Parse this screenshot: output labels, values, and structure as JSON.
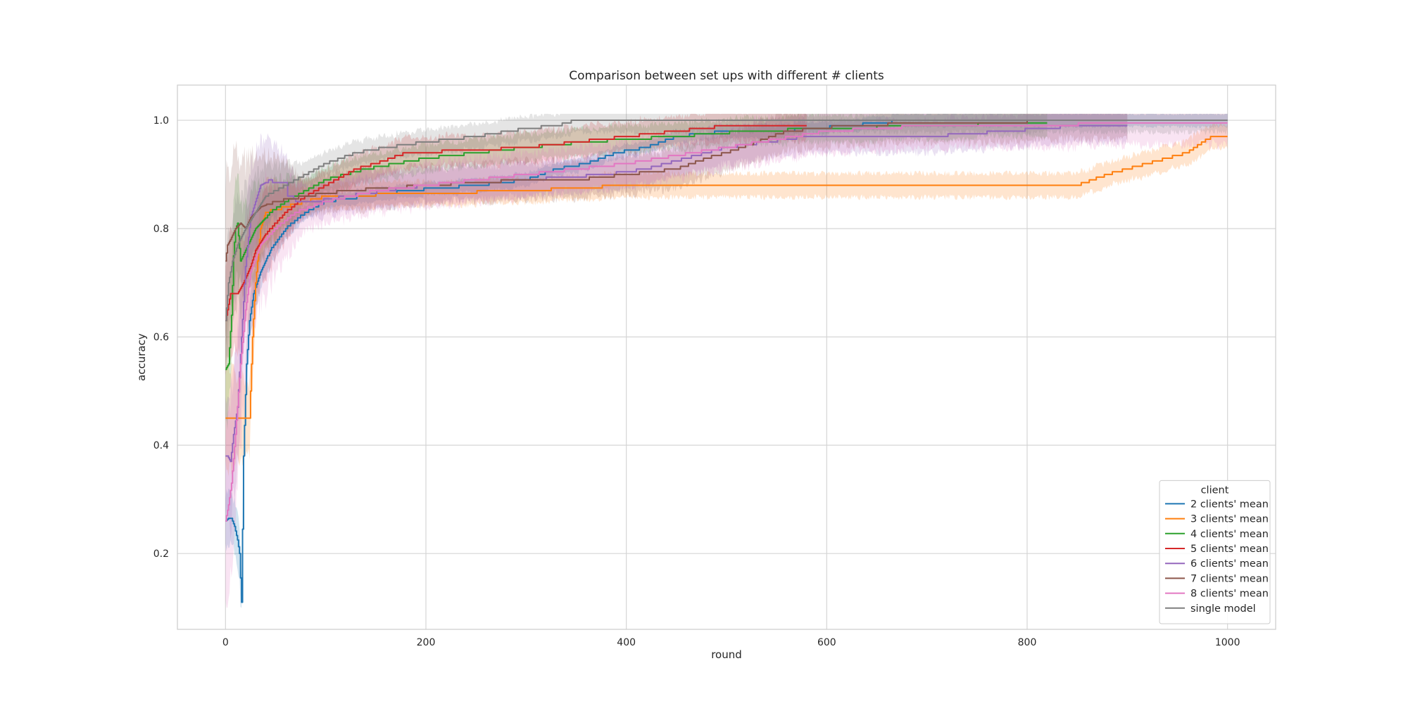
{
  "chart_data": {
    "type": "line",
    "title": "Comparison between set ups with different # clients",
    "xlabel": "round",
    "ylabel": "accuracy",
    "xlim": [
      -48,
      1048
    ],
    "ylim": [
      0.06,
      1.065
    ],
    "xticks": [
      0,
      200,
      400,
      600,
      800,
      1000
    ],
    "yticks": [
      0.2,
      0.4,
      0.6,
      0.8,
      1.0
    ],
    "xtick_labels": [
      "0",
      "200",
      "400",
      "600",
      "800",
      "1000"
    ],
    "ytick_labels": [
      "0.2",
      "0.4",
      "0.6",
      "0.8",
      "1.0"
    ],
    "grid": true,
    "legend": {
      "title": "client",
      "placement": "lower-right"
    },
    "series": [
      {
        "name": "2 clients' mean",
        "color": "#1f77b4",
        "x_end": 1000,
        "points": [
          [
            0,
            0.26
          ],
          [
            3,
            0.265
          ],
          [
            6,
            0.265
          ],
          [
            9,
            0.25
          ],
          [
            12,
            0.225
          ],
          [
            14,
            0.2
          ],
          [
            16,
            0.11
          ],
          [
            18,
            0.38
          ],
          [
            21,
            0.55
          ],
          [
            24,
            0.63
          ],
          [
            28,
            0.68
          ],
          [
            35,
            0.72
          ],
          [
            45,
            0.76
          ],
          [
            60,
            0.8
          ],
          [
            80,
            0.83
          ],
          [
            100,
            0.85
          ],
          [
            140,
            0.86
          ],
          [
            180,
            0.87
          ],
          [
            250,
            0.88
          ],
          [
            300,
            0.89
          ],
          [
            330,
            0.91
          ],
          [
            360,
            0.92
          ],
          [
            390,
            0.94
          ],
          [
            420,
            0.95
          ],
          [
            450,
            0.97
          ],
          [
            500,
            0.98
          ],
          [
            550,
            0.98
          ],
          [
            620,
            0.99
          ],
          [
            680,
            1.0
          ],
          [
            1000,
            1.0
          ]
        ],
        "band": 0.012
      },
      {
        "name": "3 clients' mean",
        "color": "#ff7f0e",
        "x_end": 1000,
        "points": [
          [
            0,
            0.45
          ],
          [
            10,
            0.45
          ],
          [
            24,
            0.45
          ],
          [
            27,
            0.6
          ],
          [
            30,
            0.7
          ],
          [
            35,
            0.8
          ],
          [
            40,
            0.83
          ],
          [
            60,
            0.84
          ],
          [
            100,
            0.86
          ],
          [
            200,
            0.865
          ],
          [
            300,
            0.87
          ],
          [
            400,
            0.88
          ],
          [
            600,
            0.88
          ],
          [
            850,
            0.88
          ],
          [
            880,
            0.9
          ],
          [
            920,
            0.92
          ],
          [
            960,
            0.94
          ],
          [
            975,
            0.96
          ],
          [
            985,
            0.97
          ],
          [
            1000,
            0.97
          ]
        ],
        "band": 0.022
      },
      {
        "name": "4 clients' mean",
        "color": "#2ca02c",
        "x_end": 820,
        "points": [
          [
            0,
            0.54
          ],
          [
            3,
            0.55
          ],
          [
            6,
            0.64
          ],
          [
            8,
            0.75
          ],
          [
            10,
            0.8
          ],
          [
            12,
            0.81
          ],
          [
            15,
            0.74
          ],
          [
            20,
            0.76
          ],
          [
            30,
            0.8
          ],
          [
            45,
            0.83
          ],
          [
            60,
            0.85
          ],
          [
            80,
            0.87
          ],
          [
            100,
            0.89
          ],
          [
            140,
            0.91
          ],
          [
            200,
            0.93
          ],
          [
            250,
            0.94
          ],
          [
            300,
            0.95
          ],
          [
            360,
            0.96
          ],
          [
            400,
            0.965
          ],
          [
            450,
            0.97
          ],
          [
            520,
            0.98
          ],
          [
            600,
            0.985
          ],
          [
            700,
            0.99
          ],
          [
            800,
            0.995
          ],
          [
            820,
            0.995
          ]
        ],
        "band": 0.025
      },
      {
        "name": "5 clients' mean",
        "color": "#d62728",
        "x_end": 580,
        "points": [
          [
            0,
            0.63
          ],
          [
            5,
            0.68
          ],
          [
            8,
            0.68
          ],
          [
            12,
            0.68
          ],
          [
            18,
            0.7
          ],
          [
            25,
            0.73
          ],
          [
            30,
            0.76
          ],
          [
            40,
            0.79
          ],
          [
            60,
            0.83
          ],
          [
            80,
            0.86
          ],
          [
            100,
            0.88
          ],
          [
            130,
            0.91
          ],
          [
            150,
            0.92
          ],
          [
            180,
            0.94
          ],
          [
            250,
            0.945
          ],
          [
            300,
            0.95
          ],
          [
            350,
            0.96
          ],
          [
            400,
            0.97
          ],
          [
            450,
            0.98
          ],
          [
            500,
            0.99
          ],
          [
            580,
            0.99
          ]
        ],
        "band": 0.028
      },
      {
        "name": "6 clients' mean",
        "color": "#9467bd",
        "x_end": 900,
        "points": [
          [
            0,
            0.38
          ],
          [
            2,
            0.38
          ],
          [
            5,
            0.37
          ],
          [
            8,
            0.42
          ],
          [
            12,
            0.47
          ],
          [
            16,
            0.6
          ],
          [
            20,
            0.73
          ],
          [
            25,
            0.82
          ],
          [
            30,
            0.85
          ],
          [
            35,
            0.88
          ],
          [
            45,
            0.89
          ],
          [
            55,
            0.87
          ],
          [
            70,
            0.85
          ],
          [
            90,
            0.85
          ],
          [
            120,
            0.86
          ],
          [
            200,
            0.88
          ],
          [
            300,
            0.89
          ],
          [
            380,
            0.9
          ],
          [
            420,
            0.91
          ],
          [
            460,
            0.93
          ],
          [
            500,
            0.95
          ],
          [
            540,
            0.96
          ],
          [
            580,
            0.97
          ],
          [
            650,
            0.97
          ],
          [
            700,
            0.97
          ],
          [
            780,
            0.98
          ],
          [
            850,
            0.99
          ],
          [
            900,
            0.99
          ]
        ],
        "band": 0.03
      },
      {
        "name": "7 clients' mean",
        "color": "#8c564b",
        "x_end": 900,
        "points": [
          [
            0,
            0.74
          ],
          [
            2,
            0.77
          ],
          [
            5,
            0.78
          ],
          [
            10,
            0.8
          ],
          [
            15,
            0.81
          ],
          [
            20,
            0.8
          ],
          [
            25,
            0.82
          ],
          [
            35,
            0.84
          ],
          [
            50,
            0.85
          ],
          [
            80,
            0.86
          ],
          [
            120,
            0.87
          ],
          [
            200,
            0.88
          ],
          [
            300,
            0.89
          ],
          [
            350,
            0.89
          ],
          [
            400,
            0.9
          ],
          [
            450,
            0.91
          ],
          [
            480,
            0.93
          ],
          [
            500,
            0.94
          ],
          [
            530,
            0.96
          ],
          [
            560,
            0.98
          ],
          [
            620,
            0.99
          ],
          [
            700,
            0.995
          ],
          [
            900,
            1.0
          ]
        ],
        "band": 0.035
      },
      {
        "name": "8 clients' mean",
        "color": "#e377c2",
        "x_end": 1000,
        "points": [
          [
            0,
            0.26
          ],
          [
            3,
            0.29
          ],
          [
            6,
            0.33
          ],
          [
            10,
            0.42
          ],
          [
            15,
            0.55
          ],
          [
            20,
            0.65
          ],
          [
            25,
            0.72
          ],
          [
            35,
            0.77
          ],
          [
            50,
            0.8
          ],
          [
            70,
            0.83
          ],
          [
            100,
            0.85
          ],
          [
            150,
            0.87
          ],
          [
            200,
            0.88
          ],
          [
            300,
            0.9
          ],
          [
            400,
            0.92
          ],
          [
            500,
            0.95
          ],
          [
            600,
            0.98
          ],
          [
            700,
            0.99
          ],
          [
            1000,
            0.995
          ]
        ],
        "band": 0.04
      },
      {
        "name": "single model",
        "color": "#7f7f7f",
        "x_end": 1000,
        "points": [
          [
            0,
            0.63
          ],
          [
            3,
            0.7
          ],
          [
            7,
            0.74
          ],
          [
            12,
            0.77
          ],
          [
            20,
            0.8
          ],
          [
            30,
            0.83
          ],
          [
            40,
            0.86
          ],
          [
            60,
            0.88
          ],
          [
            80,
            0.9
          ],
          [
            100,
            0.92
          ],
          [
            130,
            0.94
          ],
          [
            160,
            0.95
          ],
          [
            200,
            0.96
          ],
          [
            250,
            0.97
          ],
          [
            300,
            0.985
          ],
          [
            330,
            0.99
          ],
          [
            350,
            1.0
          ],
          [
            1000,
            1.0
          ]
        ],
        "band": 0.022
      }
    ]
  }
}
